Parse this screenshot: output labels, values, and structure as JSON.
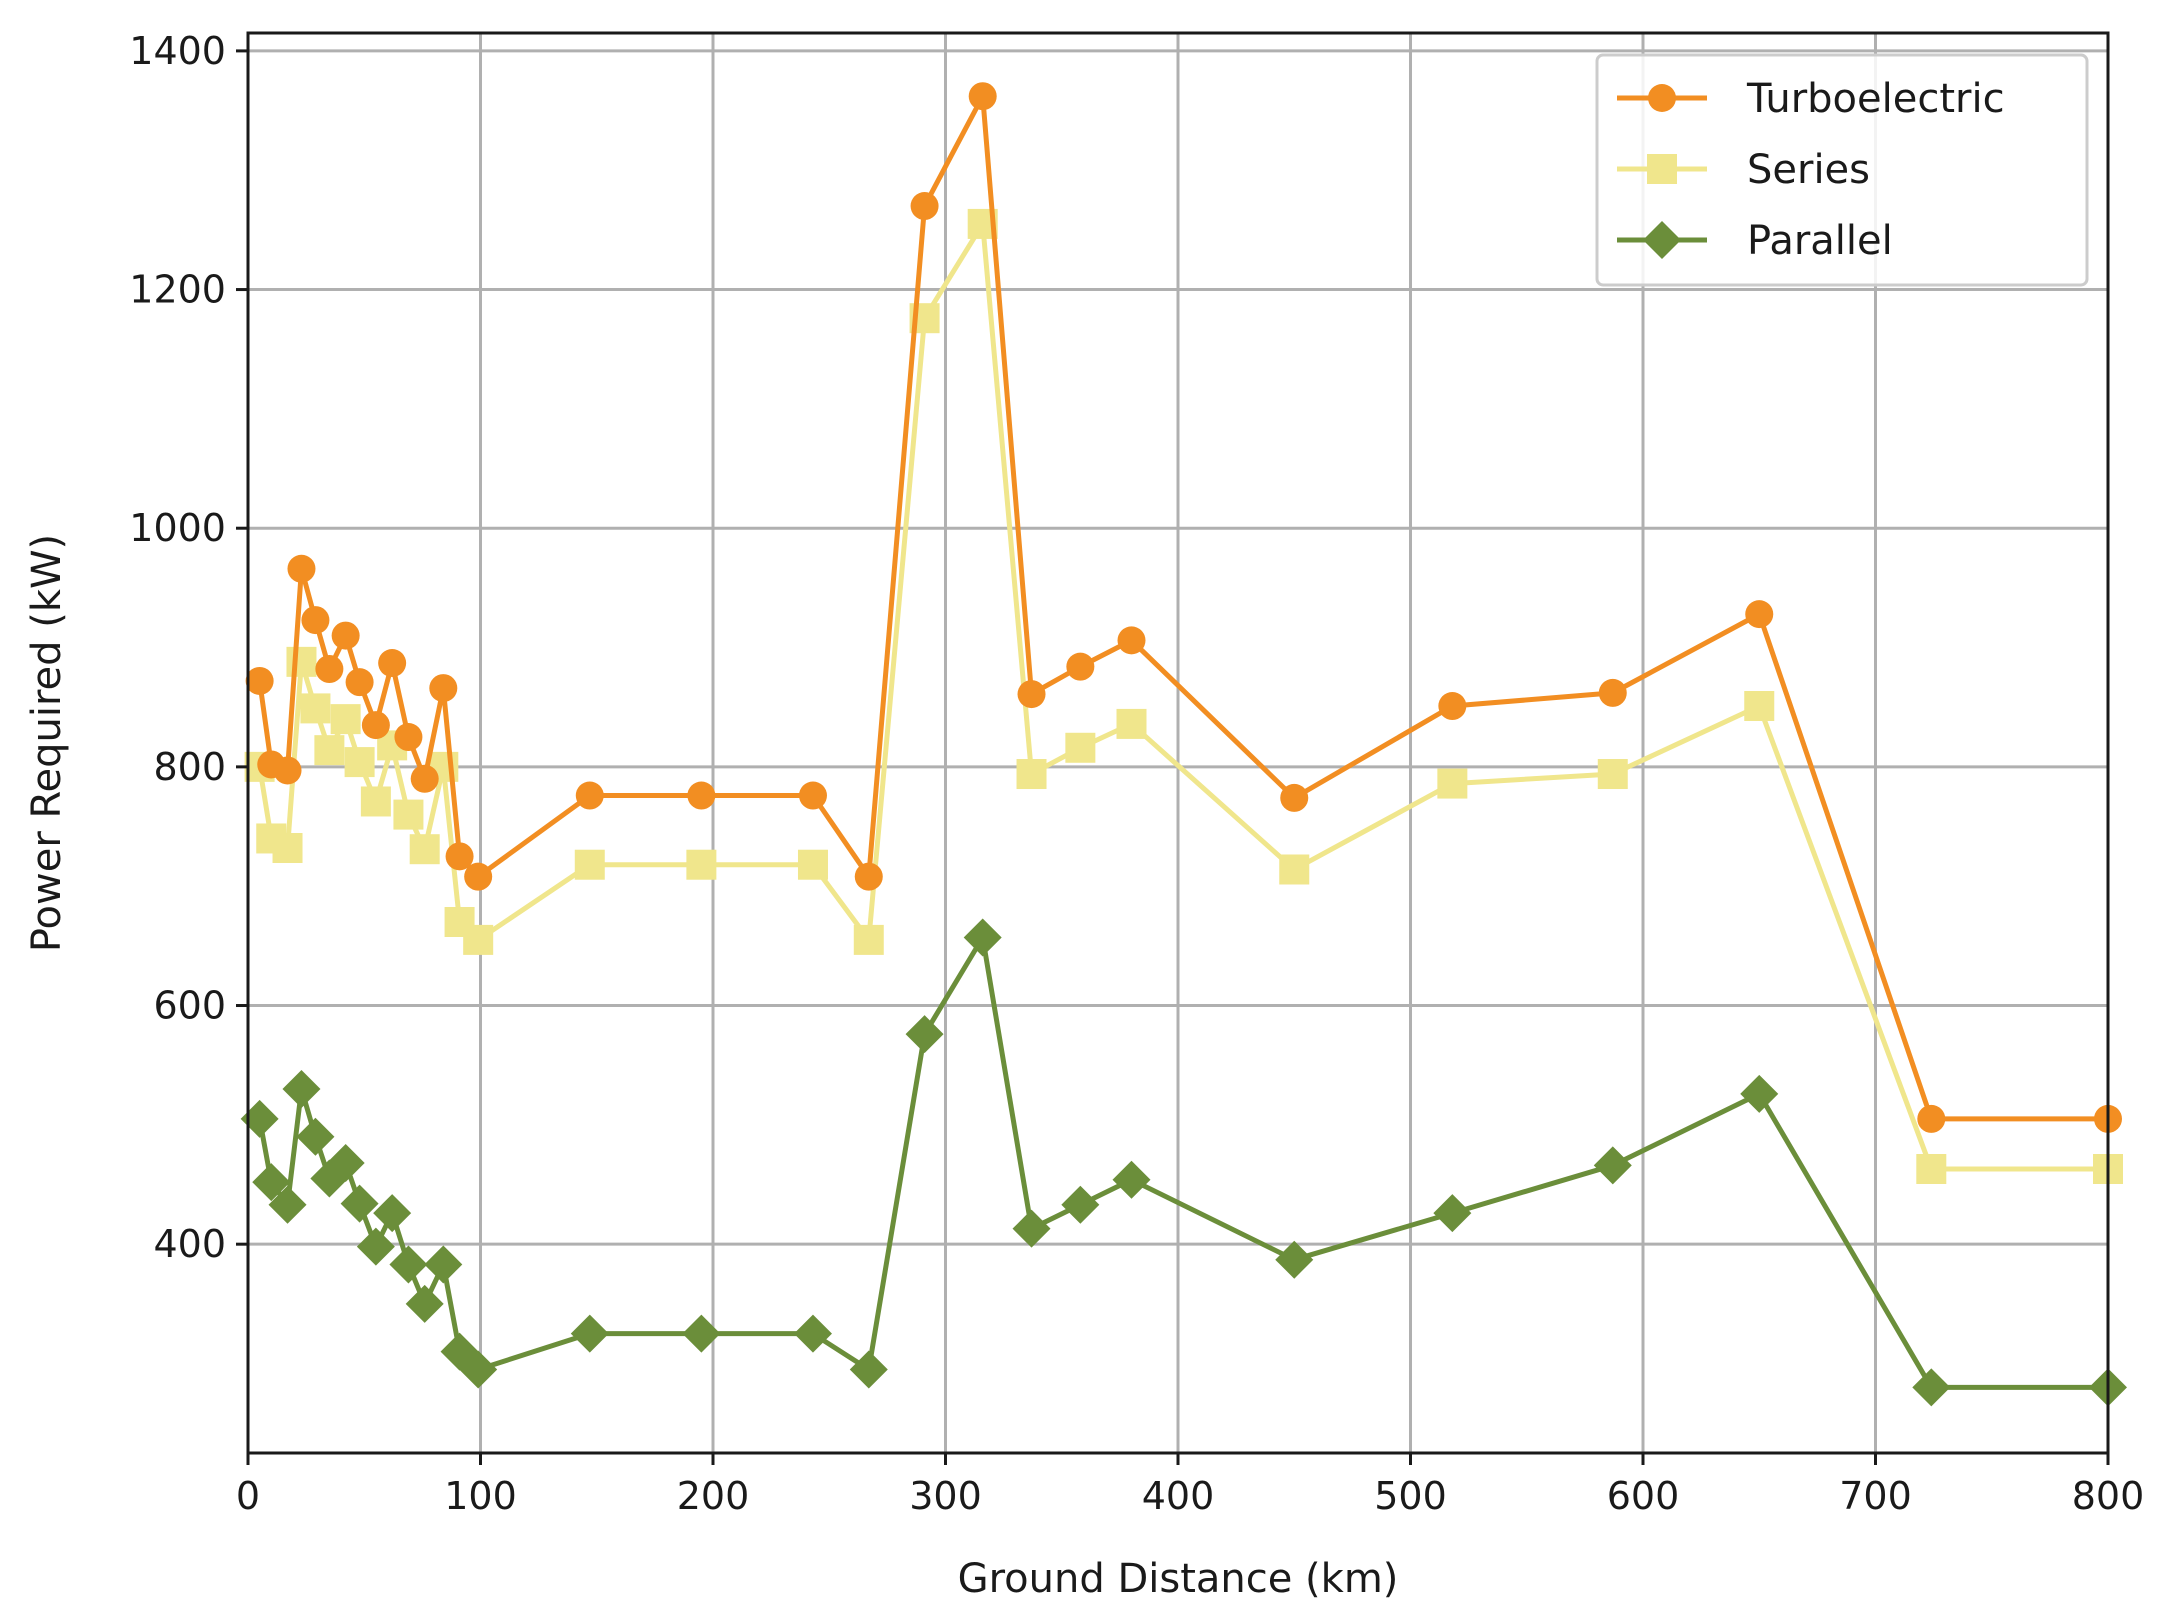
{
  "chart_data": {
    "type": "line",
    "title": "",
    "xlabel": "Ground Distance (km)",
    "ylabel": "Power Required (kW)",
    "xlim": [
      0,
      800
    ],
    "ylim": [
      225,
      1415
    ],
    "xticks": [
      0,
      100,
      200,
      300,
      400,
      500,
      600,
      700,
      800
    ],
    "yticks": [
      400,
      600,
      800,
      1000,
      1200,
      1400
    ],
    "grid": true,
    "legend_position": "top-right",
    "series": [
      {
        "name": "Turboelectric",
        "color": "#f28e22",
        "marker": "circle",
        "x": [
          5,
          10,
          17,
          23,
          29,
          35,
          42,
          48,
          55,
          62,
          69,
          76,
          84,
          91,
          99,
          147,
          195,
          243,
          267,
          291,
          316,
          337,
          358,
          380,
          450,
          518,
          587,
          650,
          724,
          800
        ],
        "y": [
          872,
          802,
          797,
          966,
          923,
          882,
          910,
          871,
          835,
          887,
          825,
          790,
          866,
          725,
          708,
          776,
          776,
          776,
          708,
          1270,
          1362,
          861,
          884,
          906,
          774,
          851,
          862,
          928,
          505,
          505
        ]
      },
      {
        "name": "Series",
        "color": "#f0e68c",
        "marker": "square",
        "x": [
          5,
          10,
          17,
          23,
          29,
          35,
          42,
          48,
          55,
          62,
          69,
          76,
          84,
          91,
          99,
          147,
          195,
          243,
          267,
          291,
          316,
          337,
          358,
          380,
          450,
          518,
          587,
          650,
          724,
          800
        ],
        "y": [
          800,
          740,
          732,
          888,
          849,
          814,
          840,
          804,
          771,
          818,
          760,
          731,
          800,
          670,
          655,
          718,
          718,
          718,
          655,
          1176,
          1255,
          794,
          816,
          836,
          714,
          786,
          794,
          851,
          463,
          463
        ]
      },
      {
        "name": "Parallel",
        "color": "#6b8e3a",
        "marker": "diamond",
        "x": [
          5,
          10,
          17,
          23,
          29,
          35,
          42,
          48,
          55,
          62,
          69,
          76,
          84,
          91,
          99,
          147,
          195,
          243,
          267,
          291,
          316,
          337,
          358,
          380,
          450,
          518,
          587,
          650,
          724,
          800
        ],
        "y": [
          505,
          452,
          433,
          530,
          490,
          455,
          468,
          434,
          398,
          426,
          383,
          350,
          383,
          310,
          295,
          325,
          325,
          325,
          295,
          576,
          657,
          413,
          433,
          454,
          387,
          426,
          466,
          526,
          280,
          280
        ]
      }
    ]
  }
}
